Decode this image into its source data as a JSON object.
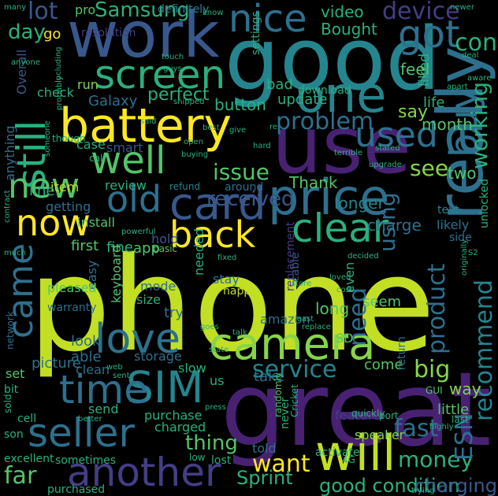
{
  "palette": [
    "#fde725",
    "#c2df23",
    "#86d549",
    "#52c569",
    "#2ab07f",
    "#1e9b8a",
    "#25858e",
    "#2d708e",
    "#38588c",
    "#433e85",
    "#482173",
    "#440154"
  ],
  "words": [
    {
      "text": "phone",
      "color": "#c2df23"
    },
    {
      "text": "great",
      "color": "#482173"
    },
    {
      "text": "good",
      "color": "#25858e"
    },
    {
      "text": "use",
      "color": "#482173"
    },
    {
      "text": "work",
      "color": "#38588c"
    },
    {
      "text": "really",
      "color": "#2d708e"
    },
    {
      "text": "one",
      "color": "#25858e"
    },
    {
      "text": "battery",
      "color": "#fde725"
    },
    {
      "text": "price",
      "color": "#2d708e"
    },
    {
      "text": "camera",
      "color": "#86d549"
    },
    {
      "text": "card",
      "color": "#38588c"
    },
    {
      "text": "SIM",
      "color": "#25858e"
    },
    {
      "text": "will",
      "color": "#c2df23"
    },
    {
      "text": "another",
      "color": "#433e85"
    },
    {
      "text": "love",
      "color": "#2d708e"
    },
    {
      "text": "time",
      "color": "#2d708e"
    },
    {
      "text": "seller",
      "color": "#2d708e"
    },
    {
      "text": "still",
      "color": "#2ab07f"
    },
    {
      "text": "screen",
      "color": "#2ab07f"
    },
    {
      "text": "nice",
      "color": "#2d708e"
    },
    {
      "text": "buy",
      "color": "#2d708e"
    },
    {
      "text": "got",
      "color": "#2d708e"
    },
    {
      "text": "used",
      "color": "#2d708e"
    },
    {
      "text": "well",
      "color": "#52c569"
    },
    {
      "text": "new",
      "color": "#52c569"
    },
    {
      "text": "old",
      "color": "#2d708e"
    },
    {
      "text": "now",
      "color": "#fde725"
    },
    {
      "text": "back",
      "color": "#fde725"
    },
    {
      "text": "clear",
      "color": "#2ab07f"
    },
    {
      "text": "came",
      "color": "#2d708e"
    },
    {
      "text": "recommend",
      "color": "#25858e"
    },
    {
      "text": "problem",
      "color": "#2d708e"
    },
    {
      "text": "working",
      "color": "#2ab07f"
    },
    {
      "text": "service",
      "color": "#25858e"
    },
    {
      "text": "product",
      "color": "#2d708e"
    },
    {
      "text": "issue",
      "color": "#52c569"
    },
    {
      "text": "lot",
      "color": "#38588c"
    },
    {
      "text": "device",
      "color": "#433e85"
    },
    {
      "text": "Samsung",
      "color": "#2ab07f"
    },
    {
      "text": "con",
      "color": "#2ab07f"
    },
    {
      "text": "day",
      "color": "#2ab07f"
    },
    {
      "text": "thing",
      "color": "#52c569"
    },
    {
      "text": "want",
      "color": "#fde725"
    },
    {
      "text": "money",
      "color": "#2ab07f"
    },
    {
      "text": "far",
      "color": "#52c569"
    },
    {
      "text": "fast",
      "color": "#2d708e"
    },
    {
      "text": "Sprint",
      "color": "#2ab07f"
    },
    {
      "text": "good condition",
      "color": "#2ab07f"
    },
    {
      "text": "charging",
      "color": "#38588c"
    },
    {
      "text": "ESN",
      "color": "#2d708e"
    },
    {
      "text": "big",
      "color": "#86d549"
    },
    {
      "text": "need",
      "color": "#2d708e"
    },
    {
      "text": "using",
      "color": "#2d708e"
    },
    {
      "text": "see",
      "color": "#86d549"
    },
    {
      "text": "received",
      "color": "#38588c"
    },
    {
      "text": "Thank",
      "color": "#52c569"
    },
    {
      "text": "longer",
      "color": "#25858e"
    },
    {
      "text": "charge",
      "color": "#2d708e"
    },
    {
      "text": "two",
      "color": "#52c569"
    },
    {
      "text": "month",
      "color": "#52c569"
    },
    {
      "text": "say",
      "color": "#86d549"
    },
    {
      "text": "life",
      "color": "#2ab07f"
    },
    {
      "text": "liked",
      "color": "#2ab07f"
    },
    {
      "text": "feel",
      "color": "#52c569"
    },
    {
      "text": "update",
      "color": "#2ab07f"
    },
    {
      "text": "button",
      "color": "#2ab07f"
    },
    {
      "text": "perfect",
      "color": "#2ab07f"
    },
    {
      "text": "Galaxy",
      "color": "#2d708e"
    },
    {
      "text": "bad",
      "color": "#2ab07f"
    },
    {
      "text": "video",
      "color": "#2ab07f"
    },
    {
      "text": "Bought",
      "color": "#2ab07f"
    },
    {
      "text": "pro",
      "color": "#52c569"
    },
    {
      "text": "definitely",
      "color": "#25858e"
    },
    {
      "text": "resolution",
      "color": "#433e85"
    },
    {
      "text": "settings",
      "color": "#2ab07f"
    },
    {
      "text": "download",
      "color": "#2ab07f"
    },
    {
      "text": "run",
      "color": "#86d549"
    },
    {
      "text": "check",
      "color": "#2ab07f"
    },
    {
      "text": "Overall",
      "color": "#38588c"
    },
    {
      "text": "smart",
      "color": "#38588c"
    },
    {
      "text": "case",
      "color": "#2ab07f"
    },
    {
      "text": "item",
      "color": "#c2df23"
    },
    {
      "text": "getting",
      "color": "#2d708e"
    },
    {
      "text": "install",
      "color": "#52c569"
    },
    {
      "text": "review",
      "color": "#2ab07f"
    },
    {
      "text": "refund",
      "color": "#25858e"
    },
    {
      "text": "around",
      "color": "#2d708e"
    },
    {
      "text": "line",
      "color": "#2ab07f"
    },
    {
      "text": "anything",
      "color": "#2d708e"
    },
    {
      "text": "first",
      "color": "#52c569"
    },
    {
      "text": "fine",
      "color": "#2ab07f"
    },
    {
      "text": "app",
      "color": "#52c569"
    },
    {
      "text": "hold",
      "color": "#38588c"
    },
    {
      "text": "basic",
      "color": "#52c569"
    },
    {
      "text": "needed",
      "color": "#2ab07f"
    },
    {
      "text": "stay",
      "color": "#2d708e"
    },
    {
      "text": "happy",
      "color": "#c2df23"
    },
    {
      "text": "cable",
      "color": "#38588c"
    },
    {
      "text": "size",
      "color": "#2ab07f"
    },
    {
      "text": "try",
      "color": "#2d708e"
    },
    {
      "text": "mode",
      "color": "#2d708e"
    },
    {
      "text": "easy",
      "color": "#2d708e"
    },
    {
      "text": "pleased",
      "color": "#52c569"
    },
    {
      "text": "keyboard",
      "color": "#52c569"
    },
    {
      "text": "warranty",
      "color": "#2d708e"
    },
    {
      "text": "look",
      "color": "#2d708e"
    },
    {
      "text": "able",
      "color": "#2d708e"
    },
    {
      "text": "picture",
      "color": "#2d708e"
    },
    {
      "text": "storage",
      "color": "#2d708e"
    },
    {
      "text": "clean",
      "color": "#2d708e"
    },
    {
      "text": "slow",
      "color": "#2ab07f"
    },
    {
      "text": "us",
      "color": "#2ab07f"
    },
    {
      "text": "take",
      "color": "#2d708e"
    },
    {
      "text": "told",
      "color": "#2d708e"
    },
    {
      "text": "amazon",
      "color": "#2d708e"
    },
    {
      "text": "replacement",
      "color": "#433e85"
    },
    {
      "text": "even",
      "color": "#2ab07f"
    },
    {
      "text": "seem",
      "color": "#52c569"
    },
    {
      "text": "long",
      "color": "#52c569"
    },
    {
      "text": "come",
      "color": "#52c569"
    },
    {
      "text": "return",
      "color": "#2d708e"
    },
    {
      "text": "text",
      "color": "#25858e"
    },
    {
      "text": "likely",
      "color": "#2d708e"
    },
    {
      "text": "side",
      "color": "#2d708e"
    },
    {
      "text": "unlocked",
      "color": "#2ab07f"
    },
    {
      "text": "way",
      "color": "#86d549"
    },
    {
      "text": "little",
      "color": "#52c569"
    },
    {
      "text": "feature",
      "color": "#433e85"
    },
    {
      "text": "speaker",
      "color": "#86d549"
    },
    {
      "text": "never",
      "color": "#2ab07f"
    },
    {
      "text": "purchase",
      "color": "#2ab07f"
    },
    {
      "text": "charged",
      "color": "#2ab07f"
    },
    {
      "text": "send",
      "color": "#2ab07f"
    },
    {
      "text": "cell",
      "color": "#2ab07f"
    },
    {
      "text": "set",
      "color": "#52c569"
    },
    {
      "text": "bit",
      "color": "#2ab07f"
    },
    {
      "text": "son",
      "color": "#2ab07f"
    },
    {
      "text": "excellent",
      "color": "#2ab07f"
    },
    {
      "text": "sometimes",
      "color": "#2ab07f"
    },
    {
      "text": "purchased",
      "color": "#2ab07f"
    },
    {
      "text": "lost",
      "color": "#2ab07f"
    },
    {
      "text": "activate",
      "color": "#2ab07f"
    },
    {
      "text": "randomly",
      "color": "#52c569"
    },
    {
      "text": "Cricket",
      "color": "#2ab07f"
    },
    {
      "text": "quickly",
      "color": "#2ab07f"
    },
    {
      "text": "network",
      "color": "#2d708e"
    },
    {
      "text": "sold",
      "color": "#2ab07f"
    },
    {
      "text": "low",
      "color": "#2ab07f"
    },
    {
      "text": "4G",
      "color": "#2ab07f"
    },
    {
      "text": "SD",
      "color": "#52c569"
    },
    {
      "text": "GUI",
      "color": "#52c569"
    },
    {
      "text": "port",
      "color": "#2ab07f"
    },
    {
      "text": "last",
      "color": "#2ab07f"
    },
    {
      "text": "press",
      "color": "#2ab07f"
    },
    {
      "text": "trying",
      "color": "#2ab07f"
    },
    {
      "text": "talk",
      "color": "#2ab07f"
    },
    {
      "text": "better",
      "color": "#2ab07f"
    },
    {
      "text": "web",
      "color": "#2ab07f"
    },
    {
      "text": "sent",
      "color": "#2ab07f"
    },
    {
      "text": "state",
      "color": "#2ab07f"
    },
    {
      "text": "goes",
      "color": "#2ab07f"
    },
    {
      "text": "replace",
      "color": "#2ab07f"
    },
    {
      "text": "least",
      "color": "#2ab07f"
    },
    {
      "text": "cost",
      "color": "#2ab07f"
    },
    {
      "text": "store",
      "color": "#2ab07f"
    },
    {
      "text": "loved",
      "color": "#2ab07f"
    },
    {
      "text": "decided",
      "color": "#2ab07f"
    },
    {
      "text": "fixed",
      "color": "#2ab07f"
    },
    {
      "text": "powerful",
      "color": "#2ab07f"
    },
    {
      "text": "contract",
      "color": "#2ab07f"
    },
    {
      "text": "much",
      "color": "#2ab07f"
    },
    {
      "text": "S2",
      "color": "#2ab07f"
    },
    {
      "text": "originally",
      "color": "#2ab07f"
    },
    {
      "text": "highly",
      "color": "#2ab07f"
    },
    {
      "text": "upgrade",
      "color": "#2ab07f"
    },
    {
      "text": "stated",
      "color": "#2ab07f"
    },
    {
      "text": "terrible",
      "color": "#2ab07f"
    },
    {
      "text": "hard",
      "color": "#2ab07f"
    },
    {
      "text": "buying",
      "color": "#2ab07f"
    },
    {
      "text": "give",
      "color": "#2ab07f"
    },
    {
      "text": "best",
      "color": "#2ab07f"
    },
    {
      "text": "said",
      "color": "#2ab07f"
    },
    {
      "text": "though",
      "color": "#2ab07f"
    },
    {
      "text": "call",
      "color": "#2ab07f"
    },
    {
      "text": "someone",
      "color": "#2ab07f"
    },
    {
      "text": "shipped",
      "color": "#2ab07f"
    },
    {
      "text": "guys",
      "color": "#2ab07f"
    },
    {
      "text": "probably",
      "color": "#2ab07f"
    },
    {
      "text": "including",
      "color": "#2ab07f"
    },
    {
      "text": "touch",
      "color": "#2ab07f"
    },
    {
      "text": "know",
      "color": "#2ab07f"
    },
    {
      "text": "many",
      "color": "#2ab07f"
    },
    {
      "text": "newer",
      "color": "#2ab07f"
    },
    {
      "text": "deal",
      "color": "#2ab07f"
    },
    {
      "text": "aware",
      "color": "#2ab07f"
    },
    {
      "text": "apart",
      "color": "#2ab07f"
    },
    {
      "text": "go",
      "color": "#fde725"
    },
    {
      "text": "re",
      "color": "#2ab07f"
    },
    {
      "text": "open",
      "color": "#2ab07f"
    },
    {
      "text": "anyone",
      "color": "#2ab07f"
    }
  ]
}
